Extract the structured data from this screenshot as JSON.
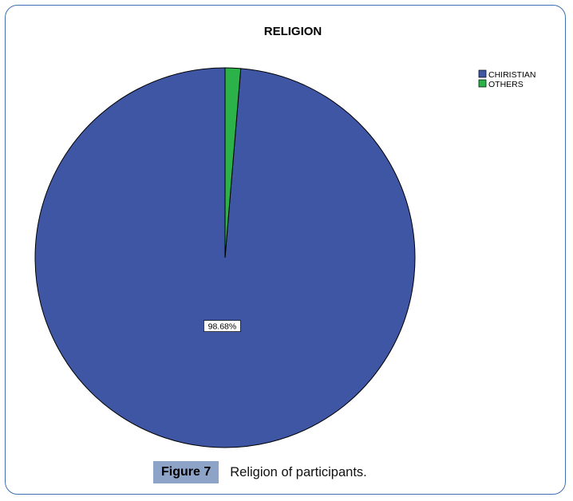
{
  "chart_data": {
    "type": "pie",
    "title": "RELIGION",
    "categories": [
      "CHIRISTIAN",
      "OTHERS"
    ],
    "values": [
      98.68,
      1.32
    ],
    "colors": [
      "#3f56a5",
      "#2bb34a"
    ],
    "data_labels": [
      "98.68%"
    ],
    "legend_position": "top-right"
  },
  "caption": {
    "label": "Figure 7",
    "text": "Religion of participants."
  }
}
